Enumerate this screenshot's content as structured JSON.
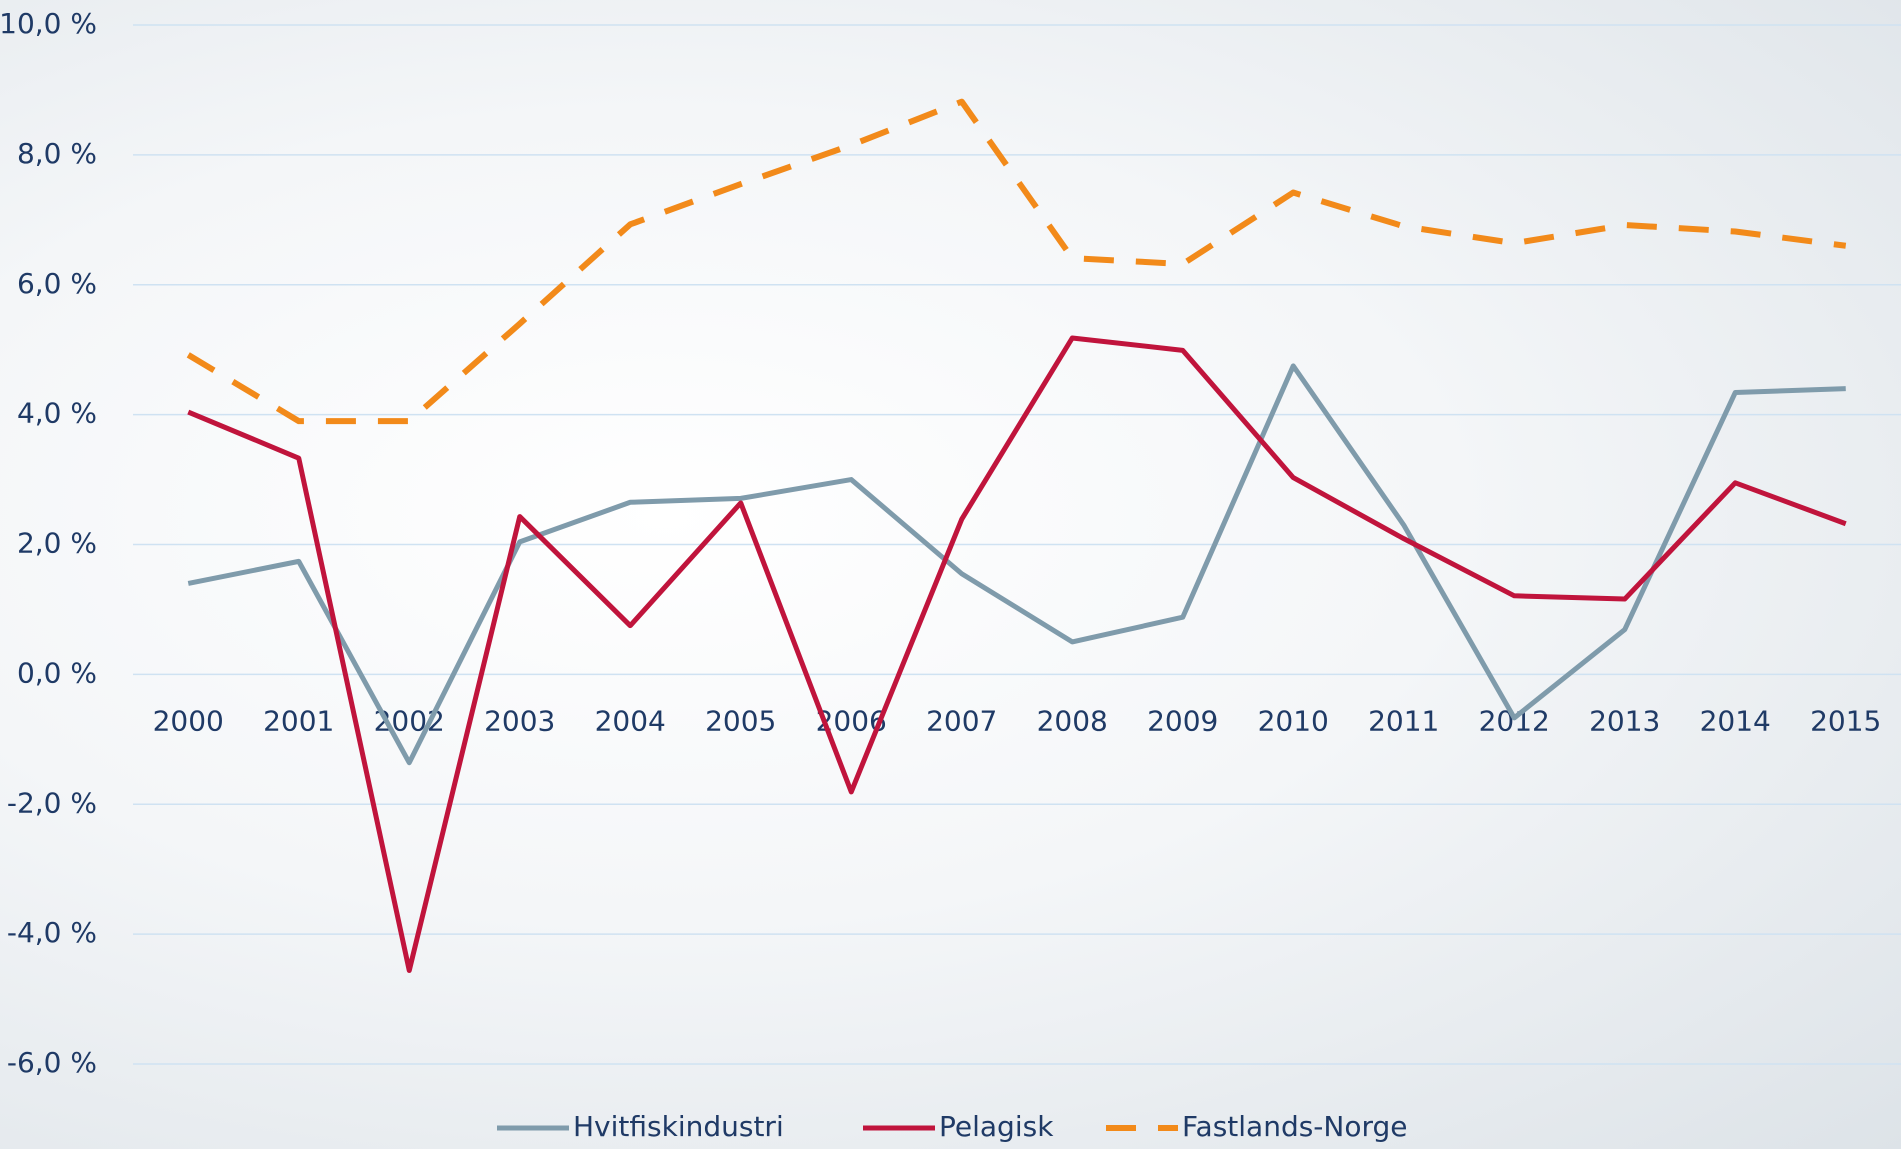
{
  "chart_data": {
    "type": "line",
    "categories": [
      "2000",
      "2001",
      "2002",
      "2003",
      "2004",
      "2005",
      "2006",
      "2007",
      "2008",
      "2009",
      "2010",
      "2011",
      "2012",
      "2013",
      "2014",
      "2015"
    ],
    "series": [
      {
        "name": "Hvitfiskindustri",
        "color": "#7f9bab",
        "dash": false,
        "values": [
          1.4,
          1.74,
          -1.36,
          2.04,
          2.65,
          2.71,
          3.0,
          1.55,
          0.5,
          0.88,
          4.75,
          2.3,
          -0.67,
          0.69,
          4.34,
          4.4
        ]
      },
      {
        "name": "Pelagisk",
        "color": "#c0143c",
        "dash": false,
        "values": [
          4.04,
          3.33,
          -4.56,
          2.43,
          0.75,
          2.64,
          -1.81,
          2.39,
          5.18,
          4.99,
          3.03,
          2.09,
          1.21,
          1.16,
          2.95,
          2.32
        ]
      },
      {
        "name": "Fastlands-Norge",
        "color": "#f28a1a",
        "dash": true,
        "values": [
          4.92,
          3.9,
          3.9,
          5.4,
          6.93,
          7.55,
          8.15,
          8.82,
          6.41,
          6.32,
          7.42,
          6.9,
          6.64,
          6.92,
          6.82,
          6.6
        ]
      }
    ],
    "ylim": [
      -6,
      10
    ],
    "yticks": [
      {
        "value": -6,
        "label": "-6,0 %"
      },
      {
        "value": -4,
        "label": "-4,0 %"
      },
      {
        "value": -2,
        "label": "-2,0 %"
      },
      {
        "value": 0,
        "label": "0,0 %"
      },
      {
        "value": 2,
        "label": "2,0 %"
      },
      {
        "value": 4,
        "label": "4,0 %"
      },
      {
        "value": 6,
        "label": "6,0 %"
      },
      {
        "value": 8,
        "label": "8,0 %"
      },
      {
        "value": 10,
        "label": "10,0 %"
      }
    ],
    "grid": true,
    "legend": "bottom"
  }
}
